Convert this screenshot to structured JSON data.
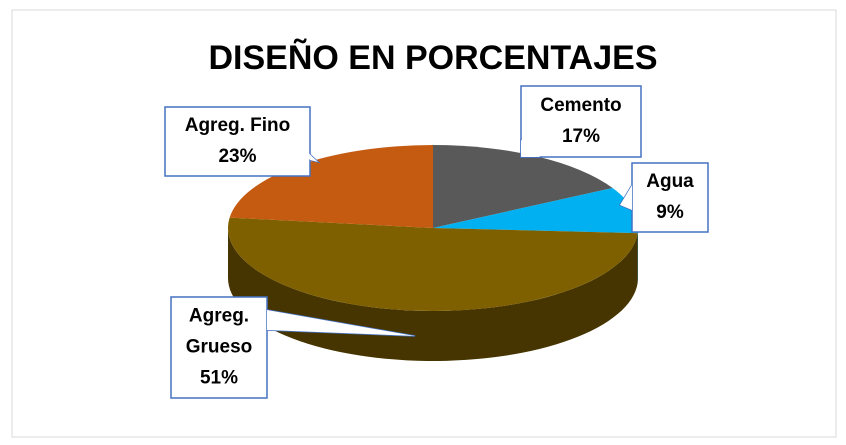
{
  "chart_data": {
    "type": "pie",
    "title": "DISEÑO EN PORCENTAJES",
    "categories": [
      "Cemento",
      "Agua",
      "Agreg. Grueso",
      "Agreg. Fino"
    ],
    "values": [
      17,
      9,
      51,
      23
    ],
    "value_labels": [
      "17%",
      "9%",
      "51%",
      "23%"
    ],
    "colors": [
      "#595959",
      "#00b0f0",
      "#7f6000",
      "#c55a11"
    ]
  }
}
